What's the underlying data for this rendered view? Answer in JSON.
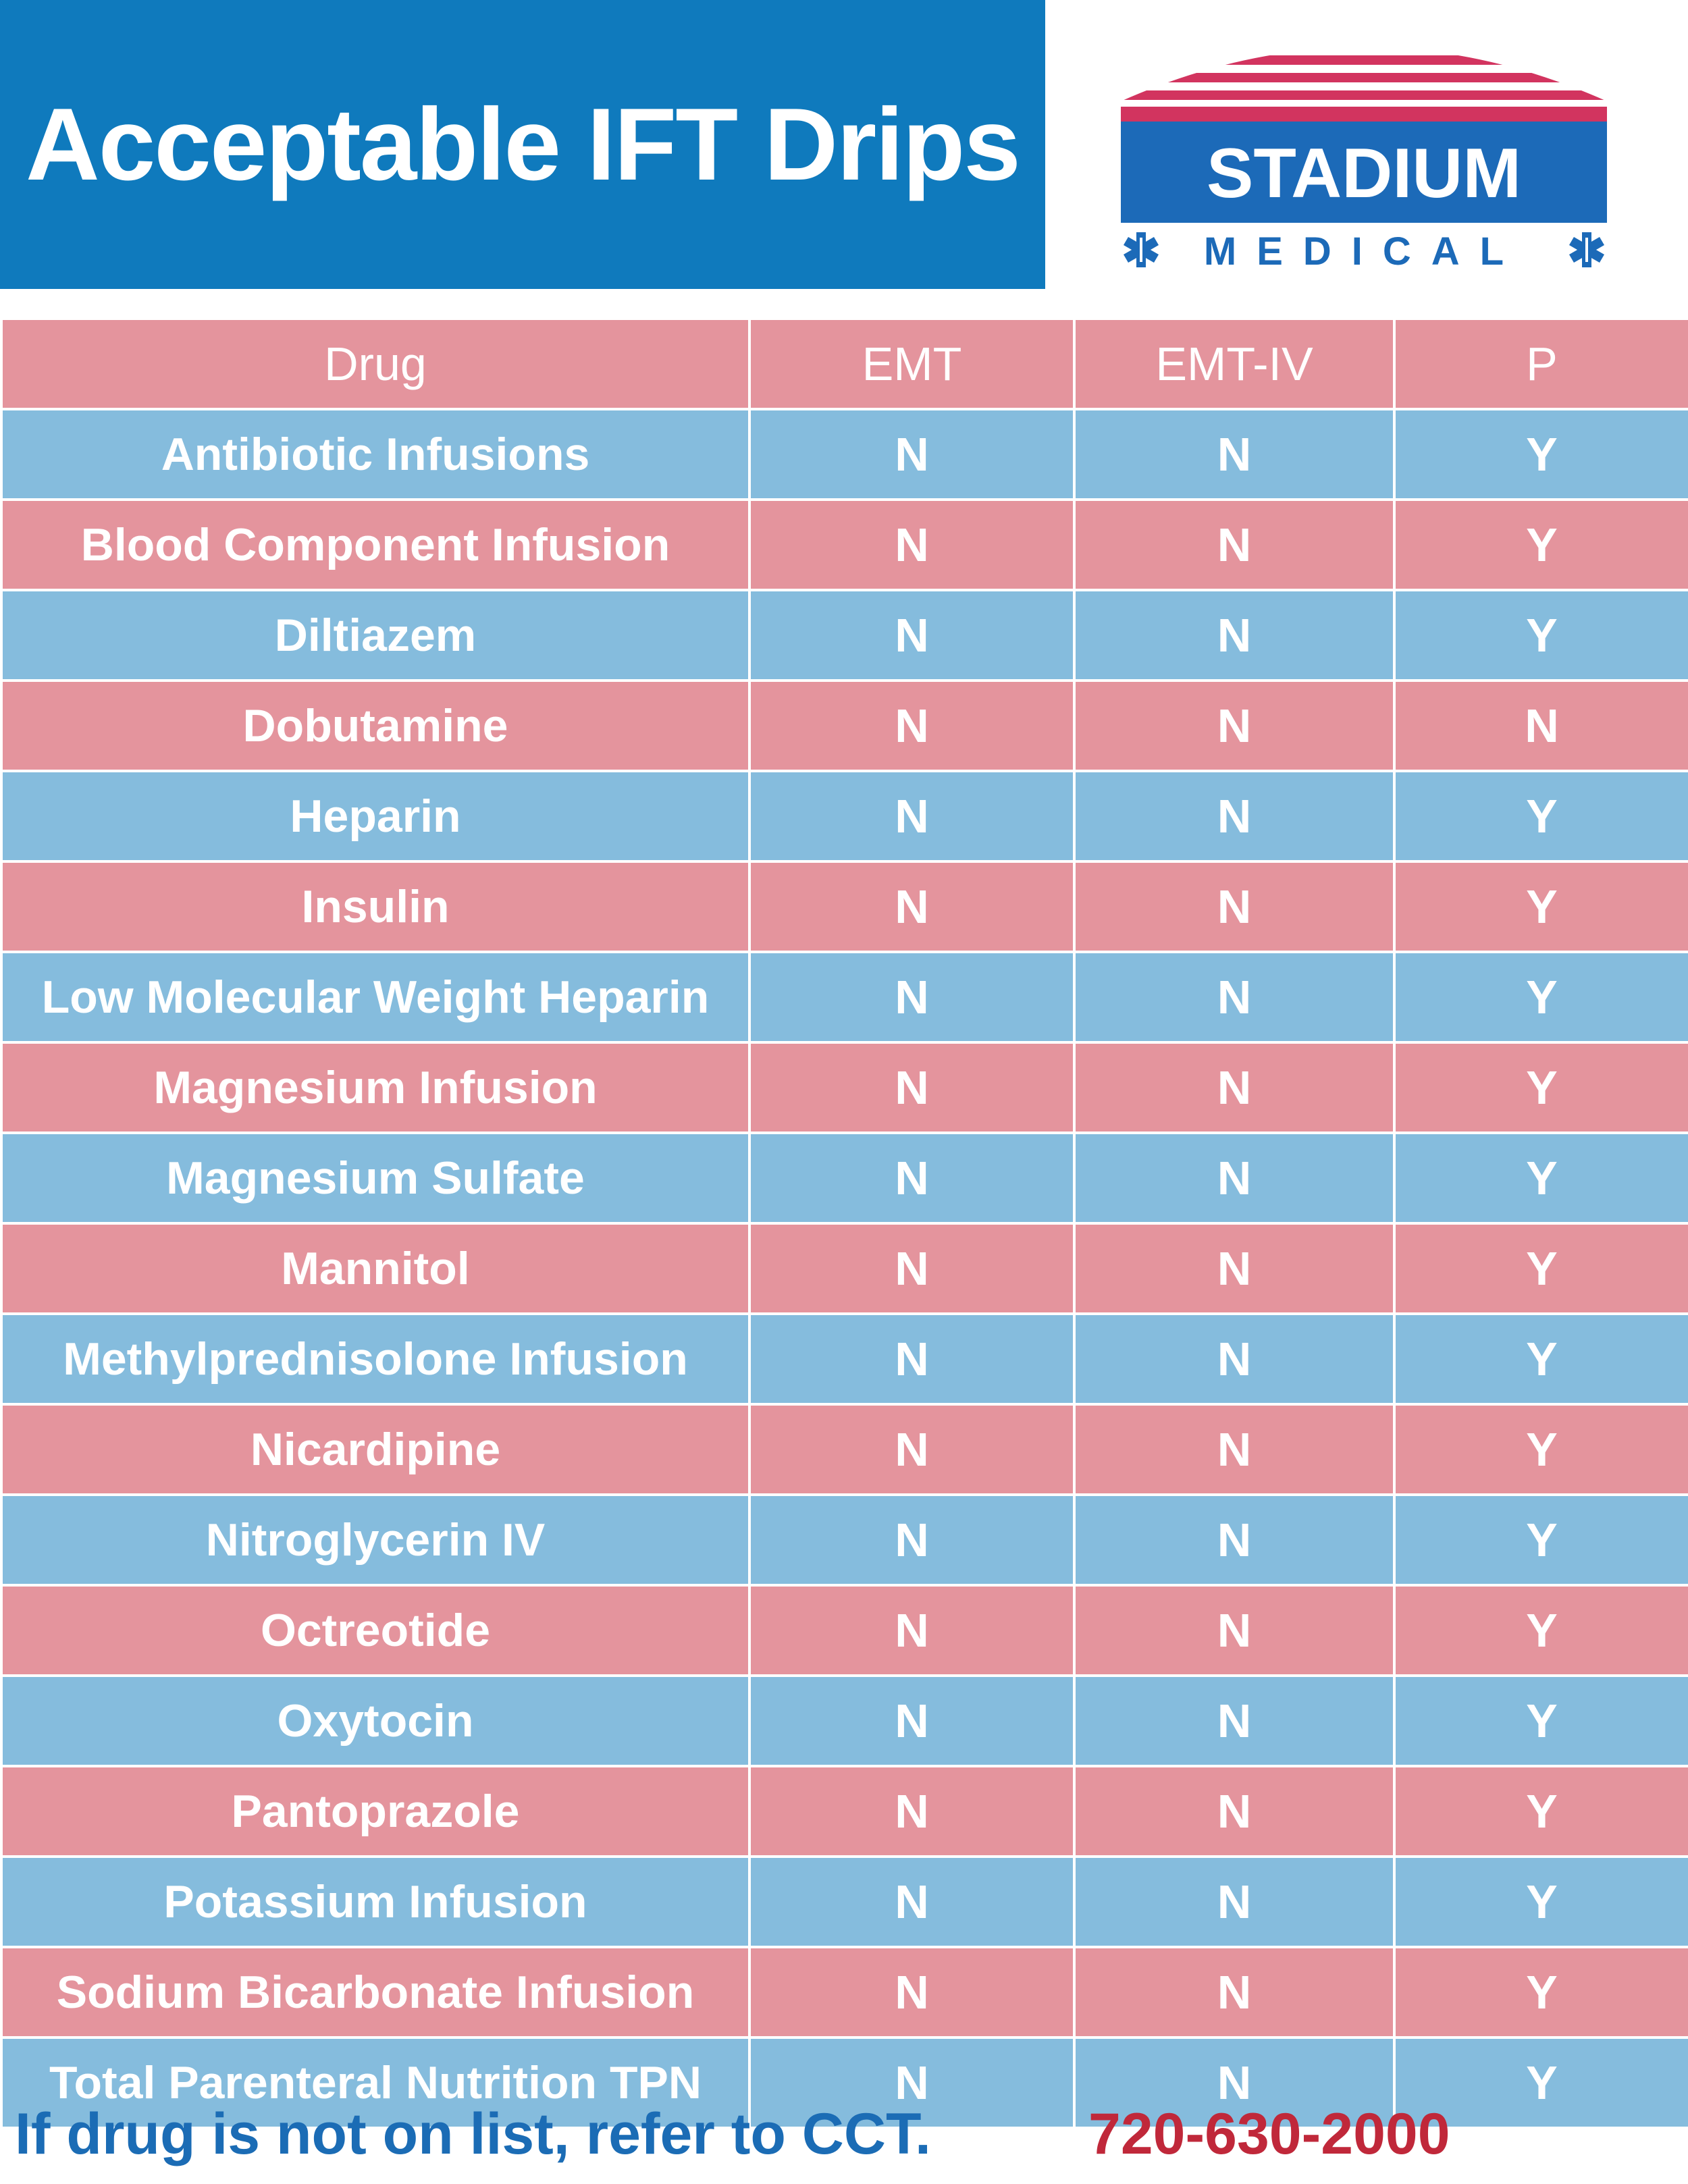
{
  "title": "Acceptable IFT Drips",
  "logo": {
    "name": "STADIUM",
    "subtitle": "MEDICAL",
    "colors": {
      "stripes": "#d2345f",
      "box": "#1c6ab8",
      "text": "#ffffff",
      "subtitle": "#1c6ab8"
    },
    "icon": "star-of-life-icon"
  },
  "table": {
    "headers": [
      "Drug",
      "EMT",
      "EMT-IV",
      "P"
    ],
    "rows": [
      {
        "drug": "Antibiotic Infusions",
        "emt": "N",
        "emt_iv": "N",
        "p": "Y"
      },
      {
        "drug": "Blood Component Infusion",
        "emt": "N",
        "emt_iv": "N",
        "p": "Y"
      },
      {
        "drug": "Diltiazem",
        "emt": "N",
        "emt_iv": "N",
        "p": "Y"
      },
      {
        "drug": "Dobutamine",
        "emt": "N",
        "emt_iv": "N",
        "p": "N"
      },
      {
        "drug": "Heparin",
        "emt": "N",
        "emt_iv": "N",
        "p": "Y"
      },
      {
        "drug": "Insulin",
        "emt": "N",
        "emt_iv": "N",
        "p": "Y"
      },
      {
        "drug": "Low Molecular Weight Heparin",
        "emt": "N",
        "emt_iv": "N",
        "p": "Y"
      },
      {
        "drug": "Magnesium Infusion",
        "emt": "N",
        "emt_iv": "N",
        "p": "Y"
      },
      {
        "drug": "Magnesium Sulfate",
        "emt": "N",
        "emt_iv": "N",
        "p": "Y"
      },
      {
        "drug": "Mannitol",
        "emt": "N",
        "emt_iv": "N",
        "p": "Y"
      },
      {
        "drug": "Methylprednisolone Infusion",
        "emt": "N",
        "emt_iv": "N",
        "p": "Y"
      },
      {
        "drug": "Nicardipine",
        "emt": "N",
        "emt_iv": "N",
        "p": "Y"
      },
      {
        "drug": "Nitroglycerin IV",
        "emt": "N",
        "emt_iv": "N",
        "p": "Y"
      },
      {
        "drug": "Octreotide",
        "emt": "N",
        "emt_iv": "N",
        "p": "Y"
      },
      {
        "drug": "Oxytocin",
        "emt": "N",
        "emt_iv": "N",
        "p": "Y"
      },
      {
        "drug": "Pantoprazole",
        "emt": "N",
        "emt_iv": "N",
        "p": "Y"
      },
      {
        "drug": "Potassium Infusion",
        "emt": "N",
        "emt_iv": "N",
        "p": "Y"
      },
      {
        "drug": "Sodium Bicarbonate Infusion",
        "emt": "N",
        "emt_iv": "N",
        "p": "Y"
      },
      {
        "drug": "Total Parenteral Nutrition TPN",
        "emt": "N",
        "emt_iv": "N",
        "p": "Y"
      }
    ]
  },
  "footer": {
    "note": "If drug is not on list, refer to CCT.",
    "phone": "720-630-2000"
  },
  "colors": {
    "title_banner": "#0f7abd",
    "row_pink": "#e4949d",
    "row_blue": "#85bcdd",
    "footer_note": "#1b6cb5",
    "footer_phone": "#c0283a"
  }
}
